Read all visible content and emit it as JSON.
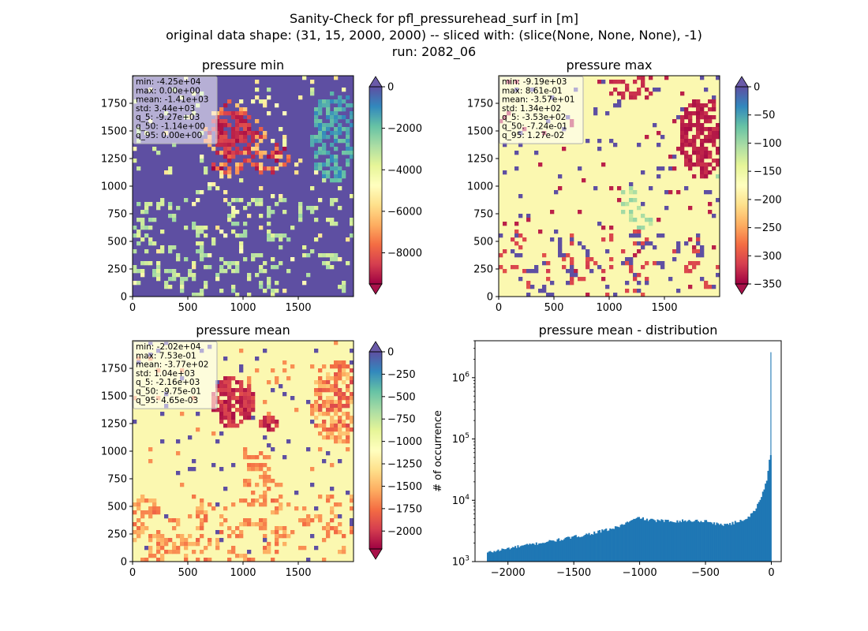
{
  "figure": {
    "title_lines": [
      "Sanity-Check for pfl_pressurehead_surf in [m]",
      "original data shape: (31, 15, 2000, 2000) -- sliced with: (slice(None, None, None), -1)",
      "run: 2082_06"
    ]
  },
  "chart_data": [
    {
      "type": "heatmap",
      "title": "pressure min",
      "xlim": [
        0,
        2000
      ],
      "ylim": [
        0,
        2000
      ],
      "xticks": [
        0,
        500,
        1000,
        1500
      ],
      "yticks": [
        0,
        250,
        500,
        750,
        1000,
        1250,
        1500,
        1750
      ],
      "colorbar": {
        "cmap": "Spectral",
        "range": [
          -9500,
          0
        ],
        "ticks": [
          0,
          -2000,
          -4000,
          -6000,
          -8000
        ],
        "tick_labels": [
          "0",
          "−2000",
          "−4000",
          "−6000",
          "−8000"
        ],
        "extend": "both",
        "over_color": "#6a5aa8",
        "under_color": "#a8124a"
      },
      "stats": [
        "min: -4.25e+04",
        "max: 0.00e+00",
        "mean: -1.41e+03",
        "std: 3.44e+03",
        "q_5: -9.27e+03",
        "q_50: -1.14e+00",
        "q_95: 0.00e+00"
      ],
      "background_color": "#5e4fa2"
    },
    {
      "type": "heatmap",
      "title": "pressure max",
      "xlim": [
        0,
        2000
      ],
      "ylim": [
        0,
        2000
      ],
      "xticks": [
        0,
        500,
        1000,
        1500
      ],
      "yticks": [
        0,
        250,
        500,
        750,
        1000,
        1250,
        1500,
        1750
      ],
      "colorbar": {
        "cmap": "Spectral",
        "range": [
          -350,
          0
        ],
        "ticks": [
          0,
          -50,
          -100,
          -150,
          -200,
          -250,
          -300,
          -350
        ],
        "tick_labels": [
          "0",
          "−50",
          "−100",
          "−150",
          "−200",
          "−250",
          "−300",
          "−350"
        ],
        "extend": "both",
        "over_color": "#6a5aa8",
        "under_color": "#a8124a"
      },
      "stats": [
        "min: -9.19e+03",
        "max: 8.61e-01",
        "mean: -3.57e+01",
        "std: 1.34e+02",
        "q_5: -3.53e+02",
        "q_50: -7.24e-01",
        "q_95: 1.27e-02"
      ],
      "background_color": "#fbf8b0"
    },
    {
      "type": "heatmap",
      "title": "pressure mean",
      "xlim": [
        0,
        2000
      ],
      "ylim": [
        0,
        2000
      ],
      "xticks": [
        0,
        500,
        1000,
        1500
      ],
      "yticks": [
        0,
        250,
        500,
        750,
        1000,
        1250,
        1500,
        1750
      ],
      "colorbar": {
        "cmap": "Spectral",
        "range": [
          -2200,
          0
        ],
        "ticks": [
          0,
          -250,
          -500,
          -750,
          -1000,
          -1250,
          -1500,
          -1750,
          -2000
        ],
        "tick_labels": [
          "0",
          "−250",
          "−500",
          "−750",
          "−1000",
          "−1250",
          "−1500",
          "−1750",
          "−2000"
        ],
        "extend": "both",
        "over_color": "#6a5aa8",
        "under_color": "#a8124a"
      },
      "stats": [
        "min: -2.02e+04",
        "max: 7.53e-01",
        "mean: -3.77e+02",
        "std: 1.04e+03",
        "q_5: -2.16e+03",
        "q_50: -9.75e-01",
        "q_95: 4.65e-03"
      ],
      "background_color": "#fbf8b0"
    },
    {
      "type": "bar",
      "subtype": "histogram",
      "title": "pressure mean - distribution",
      "xlabel": "",
      "ylabel": "# of occurrence",
      "xlim": [
        -2250,
        75
      ],
      "ylim": [
        1000,
        4000000
      ],
      "yscale": "log",
      "xticks": [
        -2000,
        -1500,
        -1000,
        -500,
        0
      ],
      "xtick_labels": [
        "−2000",
        "−1500",
        "−1000",
        "−500",
        "0"
      ],
      "yticks": [
        1000,
        10000,
        100000,
        1000000
      ],
      "ytick_labels": [
        "10^3",
        "10^4",
        "10^5",
        "10^6"
      ],
      "bar_color": "#1f77b4",
      "bin_width": 10,
      "x_start": -2160,
      "anchors_x": [
        -2160,
        -2000,
        -1800,
        -1600,
        -1400,
        -1200,
        -1050,
        -1000,
        -990,
        -970,
        -900,
        -800,
        -700,
        -600,
        -500,
        -450,
        -400,
        -300,
        -200,
        -150,
        -100,
        -60,
        -40,
        -30,
        -20,
        -10
      ],
      "anchors_y": [
        1400,
        1650,
        1950,
        2300,
        2800,
        3500,
        4800,
        5300,
        5100,
        4900,
        4700,
        4600,
        4600,
        4650,
        4600,
        4300,
        4000,
        4200,
        5000,
        6000,
        9000,
        15000,
        22000,
        30000,
        45000,
        55000
      ],
      "spike": {
        "x": -5,
        "y": 2600000
      }
    }
  ]
}
